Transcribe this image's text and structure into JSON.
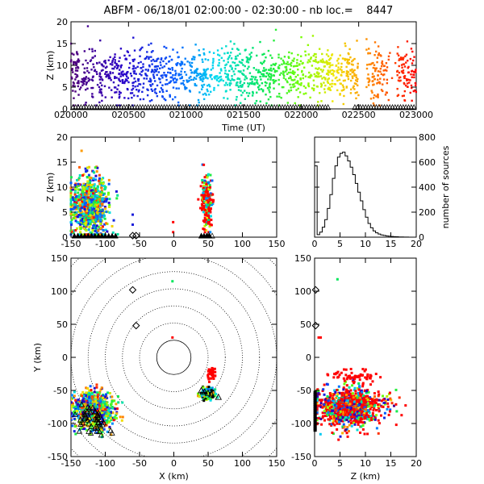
{
  "title": "ABFM - 06/18/01 02:00:00 - 02:30:00 - nb loc.=    8447",
  "chart_data": [
    {
      "id": "time-height",
      "type": "scatter",
      "xlabel": "Time (UT)",
      "ylabel": "Z (km)",
      "x_ticks": [
        "020000",
        "020500",
        "021000",
        "021500",
        "022000",
        "022500",
        "023000"
      ],
      "y_ticks": [
        0,
        5,
        10,
        15,
        20
      ],
      "xlim_seconds": [
        0,
        1800
      ],
      "ylim": [
        0,
        20
      ],
      "note_colors": "points colored by time: purple (02:00) -> blue -> cyan -> green -> yellow -> orange -> red (02:30)",
      "station_marker": "triangle",
      "clusters": [
        {
          "t_start": "020000",
          "t_end": "021000",
          "z_min": 1,
          "z_max": 16,
          "z_mean": 8
        },
        {
          "t_start": "021000",
          "t_end": "022000",
          "z_min": 1,
          "z_max": 16,
          "z_mean": 8
        },
        {
          "t_start": "022000",
          "t_end": "023000",
          "z_min": 1,
          "z_max": 15,
          "z_mean": 8
        }
      ]
    },
    {
      "id": "x-height",
      "type": "scatter",
      "xlabel": "",
      "ylabel": "Z (km)",
      "x_ticks": [
        -150,
        -100,
        -50,
        0,
        50,
        100,
        150
      ],
      "y_ticks": [
        0,
        5,
        10,
        15,
        20
      ],
      "xlim": [
        -150,
        150
      ],
      "ylim": [
        0,
        20
      ],
      "clusters": [
        {
          "x_center": -120,
          "x_spread": 28,
          "z_mean": 6,
          "z_spread": 3.5
        },
        {
          "x_center": 47,
          "x_spread": 5,
          "z_mean": 7,
          "z_spread": 3
        }
      ]
    },
    {
      "id": "height-histogram",
      "type": "bar",
      "xlabel": "",
      "ylabel": "number of sources",
      "x_ticks": [
        0,
        5,
        10,
        15,
        20
      ],
      "y_ticks": [
        0,
        200,
        400,
        600,
        800
      ],
      "xlim": [
        0,
        20
      ],
      "ylim": [
        0,
        800
      ],
      "bin_width_km": 0.5,
      "z_bins": [
        0,
        0.5,
        1,
        1.5,
        2,
        2.5,
        3,
        3.5,
        4,
        4.5,
        5,
        5.5,
        6,
        6.5,
        7,
        7.5,
        8,
        8.5,
        9,
        9.5,
        10,
        10.5,
        11,
        11.5,
        12,
        12.5,
        13,
        13.5,
        14,
        14.5,
        15,
        15.5,
        16,
        16.5,
        17,
        17.5,
        18,
        18.5,
        19,
        19.5
      ],
      "values": [
        570,
        20,
        40,
        80,
        140,
        230,
        340,
        470,
        570,
        640,
        670,
        680,
        650,
        610,
        560,
        500,
        430,
        360,
        290,
        220,
        160,
        110,
        75,
        50,
        35,
        25,
        18,
        14,
        10,
        8,
        6,
        4,
        3,
        2,
        2,
        1,
        1,
        0,
        0,
        0
      ]
    },
    {
      "id": "plan-view",
      "type": "scatter",
      "xlabel": "X (km)",
      "ylabel": "Y (km)",
      "x_ticks": [
        -150,
        -100,
        -50,
        0,
        50,
        100,
        150
      ],
      "y_ticks": [
        -150,
        -100,
        -50,
        0,
        50,
        100,
        150
      ],
      "xlim": [
        -150,
        150
      ],
      "ylim": [
        -150,
        150
      ],
      "range_rings_km": [
        25,
        50,
        75,
        100,
        125,
        150,
        175,
        200
      ],
      "stations_diamond": [
        {
          "x": -60,
          "y": 102
        },
        {
          "x": -55,
          "y": 48
        }
      ],
      "clusters": [
        {
          "x_center": -118,
          "y_center": -80,
          "x_spread": 22,
          "y_spread": 20
        },
        {
          "x_center": 50,
          "y_center": -55,
          "x_spread": 8,
          "y_spread": 6
        },
        {
          "x_center": 55,
          "y_center": -25,
          "x_spread": 5,
          "y_spread": 6
        }
      ]
    },
    {
      "id": "height-y",
      "type": "scatter",
      "xlabel": "Z (km)",
      "ylabel": "",
      "x_ticks": [
        0,
        5,
        10,
        15,
        20
      ],
      "y_ticks": [
        -150,
        -100,
        -50,
        0,
        50,
        100,
        150
      ],
      "xlim": [
        0,
        20
      ],
      "ylim": [
        -150,
        150
      ],
      "clusters": [
        {
          "z_center": 7,
          "z_spread": 3.5,
          "y_center": -75,
          "y_spread": 20
        },
        {
          "z_center": 8,
          "z_spread": 2.5,
          "y_center": -28,
          "y_spread": 7
        }
      ]
    }
  ]
}
